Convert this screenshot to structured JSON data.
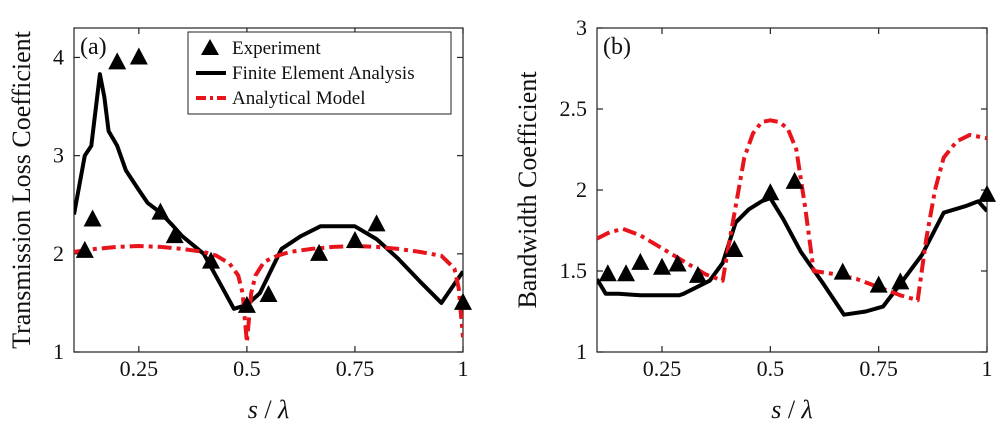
{
  "chart_data": [
    {
      "type": "line",
      "panel_label": "(a)",
      "xlabel": "s / λ",
      "ylabel": "Transmission Loss Coefficient",
      "xlim": [
        0.1,
        1.0
      ],
      "ylim": [
        1,
        4.3
      ],
      "xticks": [
        0.25,
        0.5,
        0.75,
        1
      ],
      "xtick_labels": [
        "0.25",
        "0.5",
        "0.75",
        "1"
      ],
      "yticks": [
        1,
        2,
        3,
        4
      ],
      "ytick_labels": [
        "1",
        "2",
        "3",
        "4"
      ],
      "grid": false,
      "legend_position": "top-right",
      "series": [
        {
          "name": "Experiment",
          "kind": "marker",
          "color": "#000000",
          "x": [
            0.125,
            0.143,
            0.2,
            0.25,
            0.3,
            0.333,
            0.417,
            0.5,
            0.55,
            0.667,
            0.75,
            0.8,
            1.0
          ],
          "y": [
            2.03,
            2.35,
            3.95,
            4.0,
            2.42,
            2.18,
            1.92,
            1.47,
            1.58,
            2.0,
            2.13,
            2.3,
            1.5
          ]
        },
        {
          "name": "Finite Element Analysis",
          "kind": "line",
          "color": "#000000",
          "x": [
            0.1,
            0.125,
            0.14,
            0.16,
            0.17,
            0.18,
            0.2,
            0.22,
            0.25,
            0.27,
            0.3,
            0.33,
            0.35,
            0.4,
            0.44,
            0.47,
            0.5,
            0.53,
            0.58,
            0.625,
            0.67,
            0.72,
            0.75,
            0.8,
            0.85,
            0.9,
            0.95,
            1.0
          ],
          "y": [
            2.4,
            3.0,
            3.1,
            3.83,
            3.6,
            3.25,
            3.1,
            2.85,
            2.65,
            2.52,
            2.42,
            2.28,
            2.18,
            2.0,
            1.68,
            1.44,
            1.48,
            1.6,
            2.05,
            2.18,
            2.28,
            2.28,
            2.28,
            2.15,
            1.95,
            1.72,
            1.5,
            1.82
          ]
        },
        {
          "name": "Analytical Model",
          "kind": "line",
          "color": "#e8141b",
          "x": [
            0.1,
            0.15,
            0.2,
            0.25,
            0.3,
            0.35,
            0.4,
            0.43,
            0.46,
            0.48,
            0.49,
            0.495,
            0.5,
            0.505,
            0.51,
            0.52,
            0.54,
            0.57,
            0.6,
            0.65,
            0.7,
            0.75,
            0.8,
            0.85,
            0.9,
            0.95,
            0.98,
            0.99,
            0.995,
            1.0
          ],
          "y": [
            2.02,
            2.05,
            2.07,
            2.08,
            2.07,
            2.05,
            2.02,
            1.98,
            1.9,
            1.78,
            1.6,
            1.35,
            1.1,
            1.35,
            1.6,
            1.78,
            1.92,
            1.98,
            2.02,
            2.05,
            2.07,
            2.08,
            2.07,
            2.05,
            2.02,
            1.98,
            1.85,
            1.65,
            1.4,
            1.15
          ]
        }
      ]
    },
    {
      "type": "line",
      "panel_label": "(b)",
      "xlabel": "s / λ",
      "ylabel": "Bandwidth Coefficient",
      "xlim": [
        0.1,
        1.0
      ],
      "ylim": [
        1,
        3
      ],
      "xticks": [
        0.25,
        0.5,
        0.75,
        1
      ],
      "xtick_labels": [
        "0.25",
        "0.5",
        "0.75",
        "1"
      ],
      "yticks": [
        1,
        1.5,
        2,
        2.5,
        3
      ],
      "ytick_labels": [
        "1",
        "1.5",
        "2",
        "2.5",
        "3"
      ],
      "grid": false,
      "series": [
        {
          "name": "Experiment",
          "kind": "marker",
          "color": "#000000",
          "x": [
            0.125,
            0.167,
            0.2,
            0.25,
            0.286,
            0.333,
            0.417,
            0.5,
            0.556,
            0.667,
            0.75,
            0.8,
            1.0
          ],
          "y": [
            1.48,
            1.48,
            1.55,
            1.52,
            1.54,
            1.47,
            1.63,
            1.98,
            2.05,
            1.49,
            1.41,
            1.43,
            1.97
          ]
        },
        {
          "name": "Finite Element Analysis",
          "kind": "line",
          "color": "#000000",
          "x": [
            0.1,
            0.12,
            0.15,
            0.2,
            0.25,
            0.29,
            0.3,
            0.33,
            0.36,
            0.39,
            0.42,
            0.45,
            0.48,
            0.5,
            0.53,
            0.57,
            0.62,
            0.67,
            0.72,
            0.76,
            0.8,
            0.85,
            0.9,
            0.95,
            0.98,
            1.0
          ],
          "y": [
            1.45,
            1.36,
            1.36,
            1.35,
            1.35,
            1.35,
            1.36,
            1.4,
            1.44,
            1.55,
            1.8,
            1.88,
            1.93,
            1.95,
            1.82,
            1.62,
            1.43,
            1.23,
            1.25,
            1.28,
            1.42,
            1.6,
            1.86,
            1.9,
            1.93,
            1.87
          ]
        },
        {
          "name": "Analytical Model",
          "kind": "line",
          "color": "#e8141b",
          "x": [
            0.1,
            0.13,
            0.16,
            0.2,
            0.25,
            0.3,
            0.35,
            0.39,
            0.4,
            0.42,
            0.44,
            0.46,
            0.48,
            0.5,
            0.52,
            0.54,
            0.56,
            0.58,
            0.6,
            0.65,
            0.7,
            0.75,
            0.8,
            0.84,
            0.86,
            0.88,
            0.9,
            0.93,
            0.96,
            1.0
          ],
          "y": [
            1.7,
            1.74,
            1.76,
            1.72,
            1.64,
            1.56,
            1.48,
            1.44,
            1.6,
            1.9,
            2.2,
            2.35,
            2.42,
            2.43,
            2.42,
            2.38,
            2.25,
            1.9,
            1.5,
            1.48,
            1.45,
            1.4,
            1.35,
            1.32,
            1.7,
            2.0,
            2.2,
            2.3,
            2.34,
            2.32
          ]
        }
      ]
    }
  ]
}
